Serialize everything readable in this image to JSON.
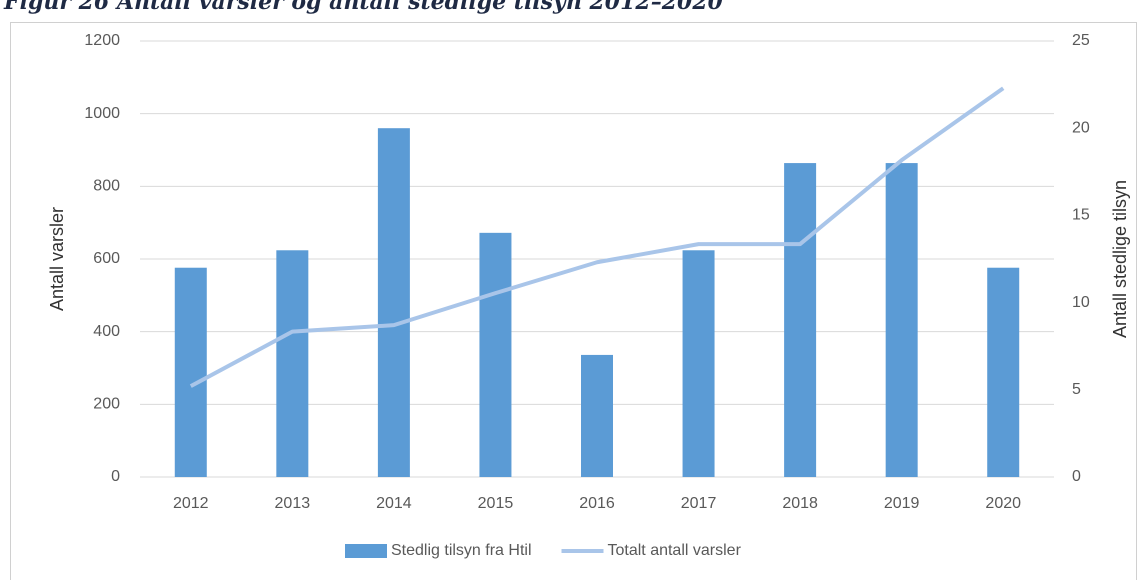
{
  "chart_data": {
    "type": "bar_line",
    "title": "Figur 26 Antall varsler og antall stedlige tilsyn 2012–2020",
    "categories": [
      "2012",
      "2013",
      "2014",
      "2015",
      "2016",
      "2017",
      "2018",
      "2019",
      "2020"
    ],
    "series": [
      {
        "name": "Stedlig tilsyn fra Htil",
        "type": "bar",
        "axis": "y2",
        "color": "#5b9bd5",
        "values": [
          12,
          13,
          20,
          14,
          7,
          13,
          18,
          18,
          12
        ]
      },
      {
        "name": "Totalt antall varsler",
        "type": "line",
        "axis": "y",
        "color": "#a9c5e9",
        "values": [
          250,
          400,
          418,
          506,
          591,
          641,
          641,
          872,
          1070
        ]
      }
    ],
    "ylabel": "Antall varsler",
    "y2label": "Antall stedlige tilsyn",
    "ylim": [
      0,
      1200
    ],
    "yticks": [
      0,
      200,
      400,
      600,
      800,
      1000,
      1200
    ],
    "y2lim": [
      0,
      25
    ],
    "y2ticks": [
      0,
      5,
      10,
      15,
      20,
      25
    ],
    "grid": true,
    "legend": "bottom"
  }
}
